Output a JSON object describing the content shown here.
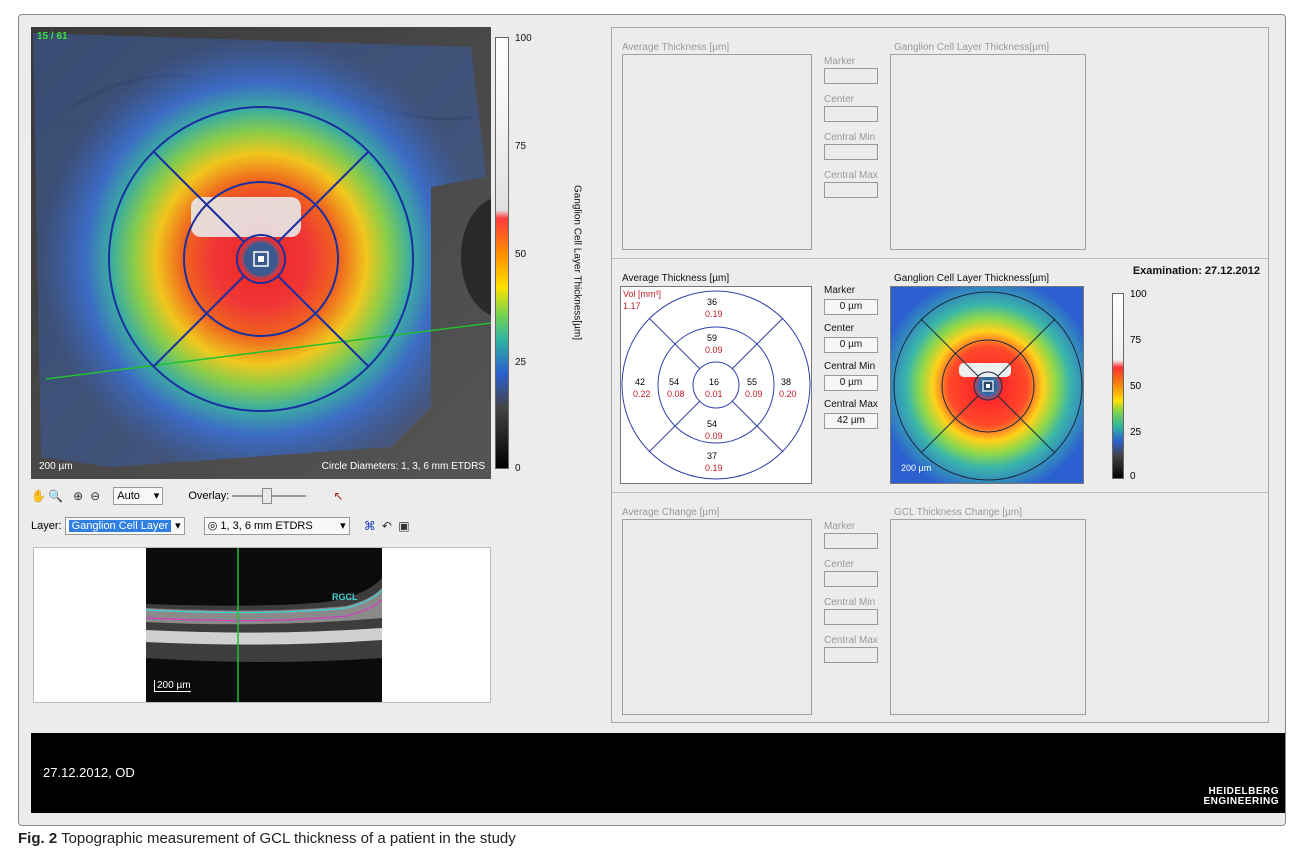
{
  "viewer": {
    "frame_counter": "15 / 61",
    "scale_label": "200 µm",
    "circle_info": "Circle Diameters: 1, 3, 6 mm ETDRS",
    "colorbar_ticks": [
      "100",
      "75",
      "50",
      "25",
      "0"
    ],
    "colorbar_label": "Ganglion Cell Layer Thickness[µm]"
  },
  "toolbar": {
    "zoom_mode": "Auto",
    "overlay_label": "Overlay:",
    "layer_label": "Layer:",
    "layer_value": "Ganglion Cell Layer",
    "grid_value": "1, 3, 6 mm ETDRS"
  },
  "oct": {
    "scale_label": "200 µm",
    "layer_tag": "RGCL"
  },
  "panels": {
    "top": {
      "left_title": "Average Thickness [µm]",
      "right_title": "Ganglion Cell Layer Thickness[µm]",
      "metrics": [
        "Marker",
        "Center",
        "Central Min",
        "Central Max"
      ]
    },
    "middle": {
      "examination": "Examination: 27.12.2012",
      "left_title": "Average Thickness [µm]",
      "right_title": "Ganglion Cell Layer Thickness[µm]",
      "vol_label": "Vol [mm³]",
      "vol_value": "1.17",
      "metrics": [
        {
          "label": "Marker",
          "value": "0 µm"
        },
        {
          "label": "Center",
          "value": "0 µm"
        },
        {
          "label": "Central Min",
          "value": "0 µm"
        },
        {
          "label": "Central Max",
          "value": "42 µm"
        }
      ],
      "sectors": [
        {
          "t": "36",
          "v": "0.19"
        },
        {
          "t": "59",
          "v": "0.09"
        },
        {
          "t": "42",
          "v": "0.22"
        },
        {
          "t": "54",
          "v": "0.08"
        },
        {
          "t": "16",
          "v": "0.01"
        },
        {
          "t": "55",
          "v": "0.09"
        },
        {
          "t": "38",
          "v": "0.20"
        },
        {
          "t": "54",
          "v": "0.09"
        },
        {
          "t": "37",
          "v": "0.19"
        }
      ],
      "map_scale": "200 µm",
      "cb_ticks": [
        "100",
        "75",
        "50",
        "25",
        "0"
      ]
    },
    "bottom": {
      "left_title": "Average Change [µm]",
      "right_title": "GCL Thickness Change [µm]",
      "metrics": [
        "Marker",
        "Center",
        "Central Min",
        "Central Max"
      ]
    }
  },
  "footer": {
    "date_eye": "27.12.2012, OD",
    "brand_line1": "HEIDELBERG",
    "brand_line2": "ENGINEERING"
  },
  "caption": {
    "label": "Fig. 2",
    "text": " Topographic measurement of GCL thickness of a patient in the study"
  },
  "colors": {
    "etdrs_grid": "#1a2fa0",
    "value_red": "#c0202a",
    "scan_line": "#22c030"
  }
}
